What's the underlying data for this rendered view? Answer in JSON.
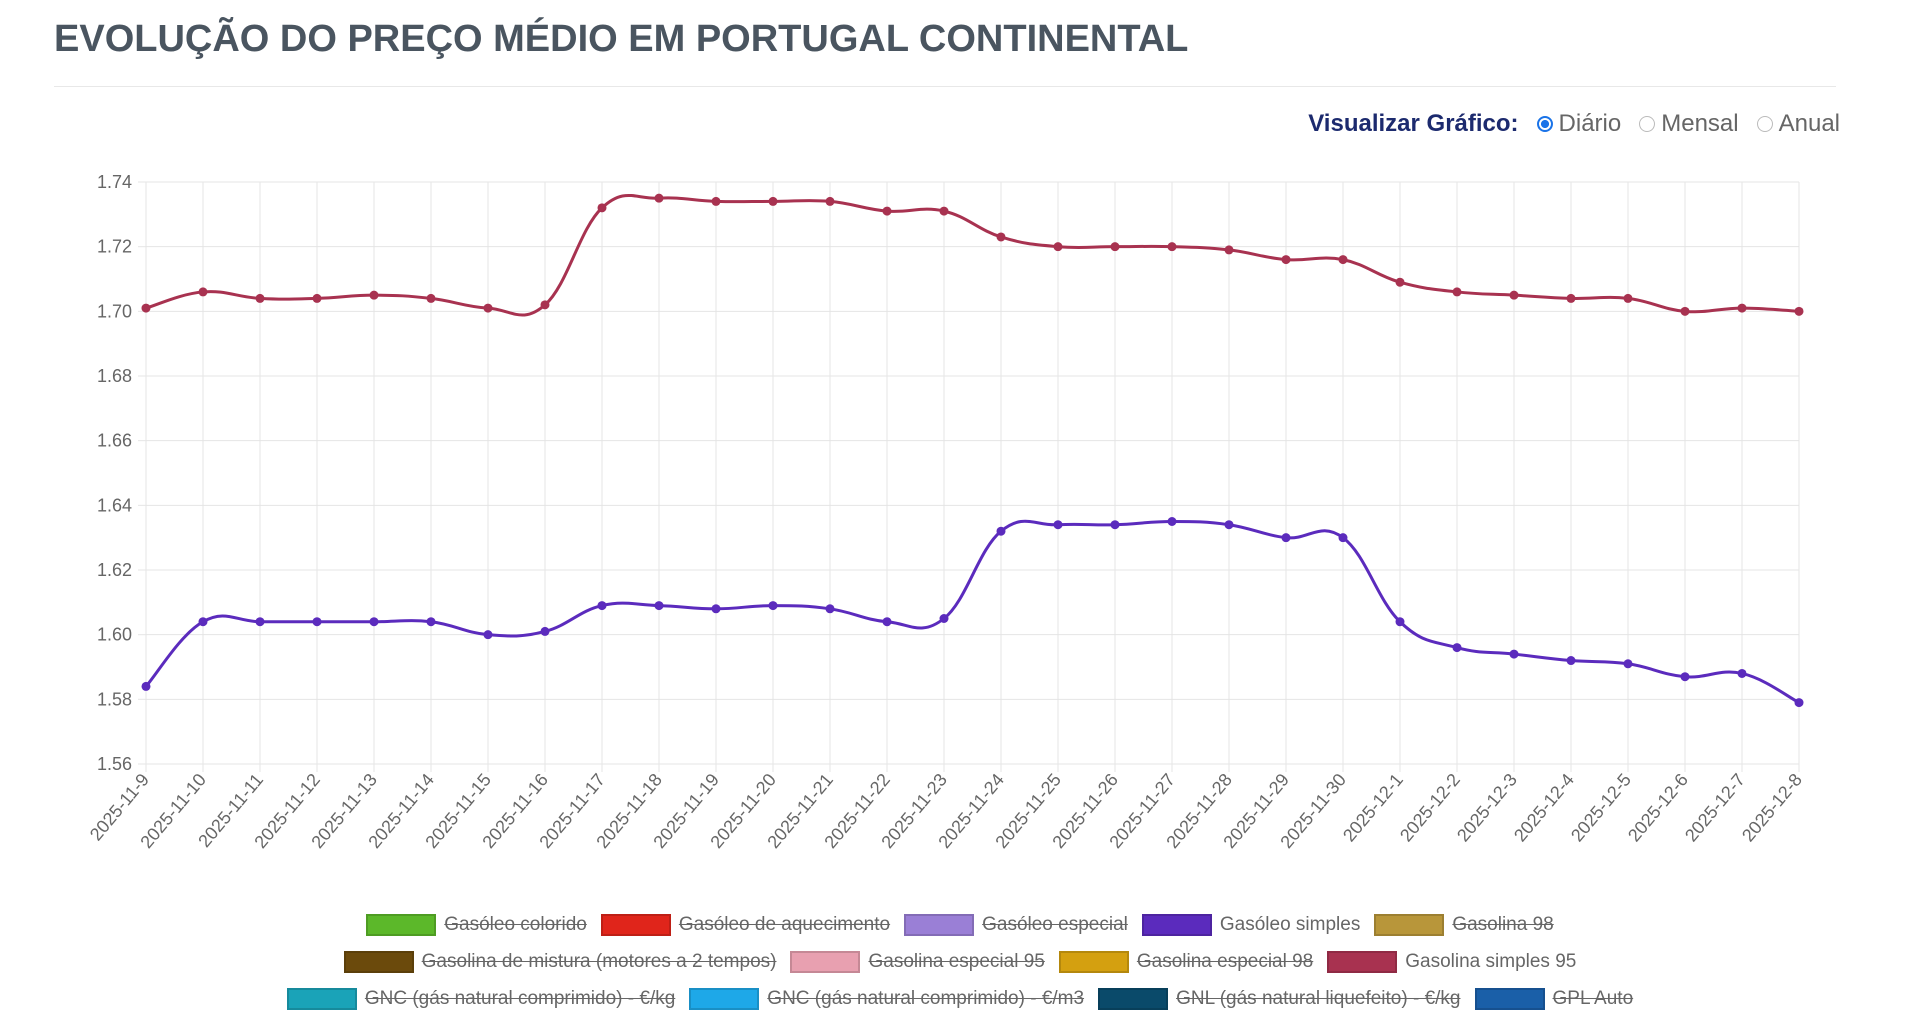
{
  "header": {
    "title": "EVOLUÇÃO DO PREÇO MÉDIO EM PORTUGAL CONTINENTAL"
  },
  "controls": {
    "label": "Visualizar Gráfico:",
    "options": [
      "Diário",
      "Mensal",
      "Anual"
    ],
    "selected": 0
  },
  "chart_data": {
    "type": "line",
    "categories": [
      "2025-11-9",
      "2025-11-10",
      "2025-11-11",
      "2025-11-12",
      "2025-11-13",
      "2025-11-14",
      "2025-11-15",
      "2025-11-16",
      "2025-11-17",
      "2025-11-18",
      "2025-11-19",
      "2025-11-20",
      "2025-11-21",
      "2025-11-22",
      "2025-11-23",
      "2025-11-24",
      "2025-11-25",
      "2025-11-26",
      "2025-11-27",
      "2025-11-28",
      "2025-11-29",
      "2025-11-30",
      "2025-12-1",
      "2025-12-2",
      "2025-12-3",
      "2025-12-4",
      "2025-12-5",
      "2025-12-6",
      "2025-12-7",
      "2025-12-8"
    ],
    "ylim": [
      1.56,
      1.74
    ],
    "yticks": [
      1.56,
      1.58,
      {
        "value": 1.6,
        "label": "1.60"
      },
      1.62,
      1.64,
      1.66,
      1.68,
      {
        "value": 1.7,
        "label": "1.70"
      },
      1.72,
      1.74
    ],
    "grid": true,
    "series": [
      {
        "name": "Gasóleo colorido",
        "color": "#5cb82a",
        "hidden": true
      },
      {
        "name": "Gasóleo de aquecimento",
        "color": "#e0251b",
        "hidden": true
      },
      {
        "name": "Gasóleo especial",
        "color": "#9a7fd6",
        "hidden": true
      },
      {
        "name": "Gasóleo simples",
        "color": "#5b2bbd",
        "values": [
          1.584,
          1.604,
          1.604,
          1.604,
          1.604,
          1.604,
          1.6,
          1.601,
          1.609,
          1.609,
          1.608,
          1.609,
          1.608,
          1.604,
          1.605,
          1.632,
          1.634,
          1.634,
          1.635,
          1.634,
          1.63,
          1.63,
          1.604,
          1.596,
          1.594,
          1.592,
          1.591,
          1.587,
          1.588,
          1.579
        ]
      },
      {
        "name": "Gasolina 98",
        "color": "#b8963a",
        "hidden": true
      },
      {
        "name": "Gasolina de mistura (motores a 2 tempos)",
        "color": "#6b4a0c",
        "hidden": true
      },
      {
        "name": "Gasolina especial 95",
        "color": "#e8a0b0",
        "hidden": true
      },
      {
        "name": "Gasolina especial 98",
        "color": "#d4a010",
        "hidden": true
      },
      {
        "name": "Gasolina simples 95",
        "color": "#a83250",
        "values": [
          1.701,
          1.706,
          1.704,
          1.704,
          1.705,
          1.704,
          1.701,
          1.702,
          1.732,
          1.735,
          1.734,
          1.734,
          1.734,
          1.731,
          1.731,
          1.723,
          1.72,
          1.72,
          1.72,
          1.719,
          1.716,
          1.716,
          1.709,
          1.706,
          1.705,
          1.704,
          1.704,
          1.7,
          1.701,
          1.7
        ]
      },
      {
        "name": "GNC (gás natural comprimido) - €/kg",
        "color": "#1aa3b8",
        "hidden": true
      },
      {
        "name": "GNC (gás natural comprimido) - €/m3",
        "color": "#1ea8e8",
        "hidden": true
      },
      {
        "name": "GNL (gás natural liquefeito) - €/kg",
        "color": "#0a4a6a",
        "hidden": true
      },
      {
        "name": "GPL Auto",
        "color": "#1a5fa8",
        "hidden": true
      }
    ]
  }
}
